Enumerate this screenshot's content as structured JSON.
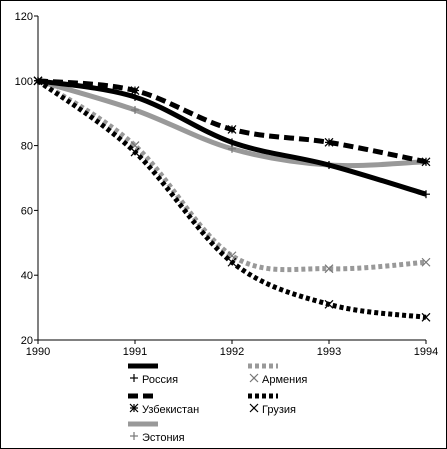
{
  "chart_data": {
    "type": "line",
    "x": [
      "1990",
      "1991",
      "1992",
      "1993",
      "1994"
    ],
    "x_values": [
      1990,
      1991,
      1992,
      1993,
      1994
    ],
    "xlim": [
      1990,
      1994
    ],
    "ylim": [
      20,
      120
    ],
    "y_ticks": [
      20,
      40,
      60,
      80,
      100,
      120
    ],
    "grid": false,
    "legend_position": "bottom",
    "series": [
      {
        "name": "Россия",
        "color": "#000000",
        "style": "solid",
        "marker": "+",
        "points": [
          [
            1990,
            100
          ],
          [
            1991,
            95
          ],
          [
            1992,
            81
          ],
          [
            1993,
            74
          ],
          [
            1994,
            65
          ]
        ]
      },
      {
        "name": "Армения",
        "color": "#999999",
        "style": "dotted",
        "marker": "x",
        "points": [
          [
            1990,
            100
          ],
          [
            1991,
            80
          ],
          [
            1992,
            46
          ],
          [
            1993,
            42
          ],
          [
            1994,
            44
          ]
        ]
      },
      {
        "name": "Узбекистан",
        "color": "#000000",
        "style": "dashed",
        "marker": "*",
        "points": [
          [
            1990,
            100
          ],
          [
            1991,
            97
          ],
          [
            1992,
            85
          ],
          [
            1993,
            81
          ],
          [
            1994,
            75
          ]
        ]
      },
      {
        "name": "Грузия",
        "color": "#000000",
        "style": "dotted",
        "marker": "x",
        "points": [
          [
            1990,
            100
          ],
          [
            1991,
            78
          ],
          [
            1992,
            44
          ],
          [
            1993,
            31
          ],
          [
            1994,
            27
          ]
        ]
      },
      {
        "name": "Эстония",
        "color": "#999999",
        "style": "solid",
        "marker": "+",
        "points": [
          [
            1990,
            100
          ],
          [
            1991,
            91
          ],
          [
            1992,
            79
          ],
          [
            1993,
            74
          ],
          [
            1994,
            75
          ]
        ]
      }
    ]
  }
}
